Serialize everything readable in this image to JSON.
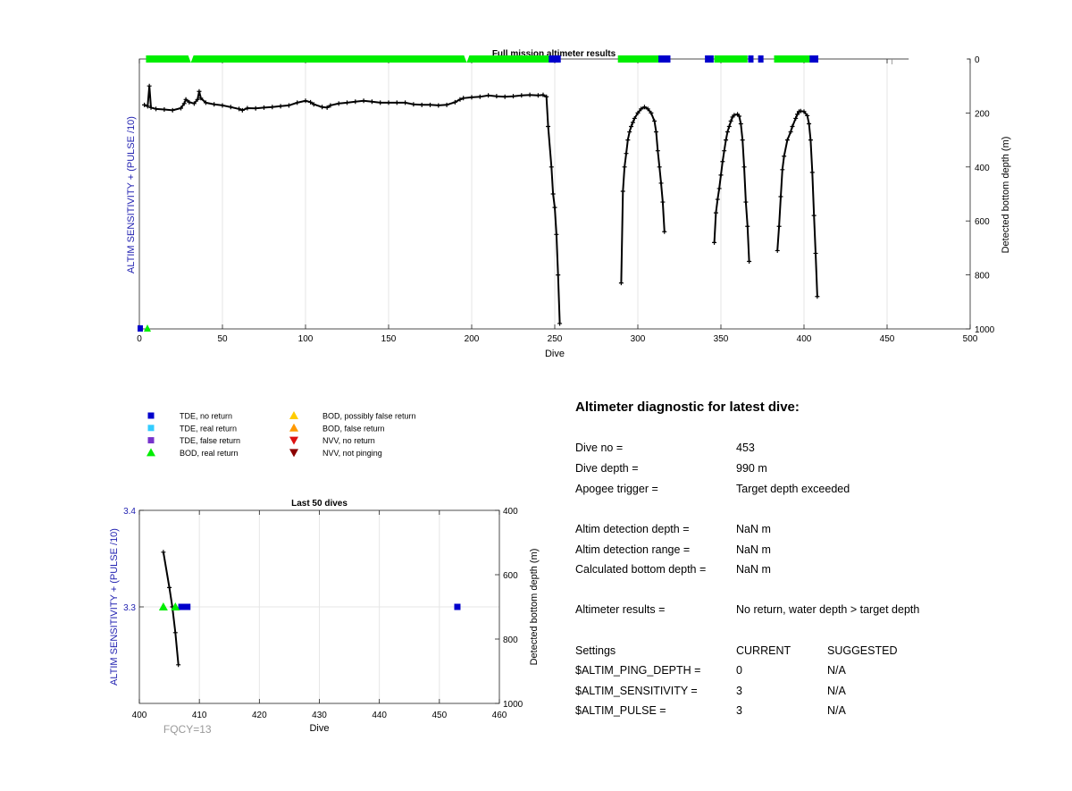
{
  "chart_data": [
    {
      "id": "full-mission",
      "type": "scatter",
      "title": "Full mission altimeter results",
      "xlabel": "Dive",
      "ylabel_left": "ALTIM SENSITIVITY + (PULSE /10)",
      "ylabel_right": "Detected bottom depth (m)",
      "xlim": [
        0,
        500
      ],
      "ylim_right": [
        0,
        1000
      ],
      "right_axis_reversed": true,
      "xticks": [
        0,
        50,
        100,
        150,
        200,
        250,
        300,
        350,
        400,
        450,
        500
      ],
      "yticks_right": [
        0,
        200,
        400,
        600,
        800,
        1000
      ],
      "grid": true,
      "bottom_depth_series": {
        "name": "Detected bottom depth",
        "color": "#000000",
        "segments": [
          [
            [
              3,
              170
            ],
            [
              5,
              175
            ],
            [
              6,
              100
            ],
            [
              7,
              180
            ],
            [
              10,
              185
            ],
            [
              15,
              187
            ],
            [
              20,
              190
            ],
            [
              25,
              182
            ],
            [
              27,
              165
            ],
            [
              28,
              150
            ],
            [
              30,
              160
            ],
            [
              33,
              165
            ],
            [
              35,
              150
            ],
            [
              36,
              120
            ],
            [
              37,
              145
            ],
            [
              40,
              162
            ],
            [
              45,
              168
            ],
            [
              50,
              172
            ],
            [
              55,
              178
            ],
            [
              60,
              185
            ],
            [
              62,
              190
            ],
            [
              65,
              182
            ],
            [
              70,
              183
            ],
            [
              75,
              180
            ],
            [
              80,
              178
            ],
            [
              85,
              175
            ],
            [
              90,
              172
            ],
            [
              95,
              162
            ],
            [
              100,
              155
            ],
            [
              103,
              160
            ],
            [
              105,
              168
            ],
            [
              110,
              178
            ],
            [
              113,
              180
            ],
            [
              115,
              172
            ],
            [
              120,
              165
            ],
            [
              125,
              162
            ],
            [
              130,
              158
            ],
            [
              135,
              155
            ],
            [
              140,
              158
            ],
            [
              145,
              162
            ],
            [
              150,
              162
            ],
            [
              155,
              162
            ],
            [
              160,
              162
            ],
            [
              165,
              168
            ],
            [
              170,
              170
            ],
            [
              175,
              170
            ],
            [
              180,
              172
            ],
            [
              185,
              170
            ],
            [
              190,
              160
            ],
            [
              193,
              150
            ],
            [
              195,
              145
            ],
            [
              200,
              142
            ],
            [
              205,
              140
            ],
            [
              210,
              135
            ],
            [
              215,
              138
            ],
            [
              220,
              140
            ],
            [
              225,
              138
            ],
            [
              230,
              135
            ],
            [
              235,
              133
            ],
            [
              240,
              135
            ],
            [
              243,
              133
            ],
            [
              245,
              140
            ],
            [
              246,
              250
            ],
            [
              248,
              400
            ],
            [
              249,
              500
            ],
            [
              250,
              550
            ],
            [
              251,
              650
            ],
            [
              252,
              800
            ],
            [
              253,
              980
            ]
          ],
          [
            [
              290,
              830
            ],
            [
              291,
              490
            ],
            [
              292,
              400
            ],
            [
              293,
              350
            ],
            [
              294,
              300
            ],
            [
              295,
              270
            ],
            [
              296,
              250
            ],
            [
              297,
              235
            ],
            [
              298,
              220
            ],
            [
              300,
              200
            ],
            [
              302,
              185
            ],
            [
              304,
              178
            ],
            [
              306,
              185
            ],
            [
              308,
              200
            ],
            [
              310,
              230
            ],
            [
              311,
              270
            ],
            [
              312,
              340
            ],
            [
              313,
              400
            ],
            [
              314,
              460
            ],
            [
              315,
              530
            ],
            [
              316,
              640
            ]
          ],
          [
            [
              346,
              680
            ],
            [
              347,
              570
            ],
            [
              348,
              520
            ],
            [
              349,
              480
            ],
            [
              350,
              430
            ],
            [
              351,
              380
            ],
            [
              352,
              340
            ],
            [
              353,
              300
            ],
            [
              354,
              270
            ],
            [
              355,
              250
            ],
            [
              356,
              230
            ],
            [
              357,
              215
            ],
            [
              358,
              208
            ],
            [
              360,
              205
            ],
            [
              361,
              212
            ],
            [
              362,
              240
            ],
            [
              363,
              300
            ],
            [
              364,
              400
            ],
            [
              365,
              530
            ],
            [
              366,
              620
            ],
            [
              367,
              750
            ]
          ],
          [
            [
              384,
              710
            ],
            [
              385,
              620
            ],
            [
              386,
              510
            ],
            [
              387,
              410
            ],
            [
              388,
              360
            ],
            [
              390,
              300
            ],
            [
              392,
              270
            ],
            [
              393,
              250
            ],
            [
              395,
              220
            ],
            [
              396,
              205
            ],
            [
              397,
              195
            ],
            [
              398,
              193
            ],
            [
              400,
              195
            ],
            [
              402,
              210
            ],
            [
              403,
              240
            ],
            [
              404,
              300
            ],
            [
              405,
              420
            ],
            [
              406,
              580
            ],
            [
              407,
              720
            ],
            [
              408,
              880
            ]
          ]
        ]
      },
      "green_bar_ranges": [
        [
          4,
          251
        ],
        [
          288,
          314
        ],
        [
          346,
          366
        ],
        [
          382,
          404
        ]
      ],
      "green_bar_gaps": [
        31,
        197
      ],
      "blue_marks": [
        248,
        250,
        252,
        314,
        316,
        318,
        342,
        344,
        368,
        374,
        405,
        407
      ]
    },
    {
      "id": "last-50",
      "type": "scatter",
      "title": "Last 50 dives",
      "xlabel": "Dive",
      "ylabel_left": "ALTIM SENSITIVITY + (PULSE /10)",
      "ylabel_right": "Detected bottom depth (m)",
      "xlim": [
        400,
        460
      ],
      "ylim_left": [
        3.2,
        3.4
      ],
      "ylim_right": [
        400,
        1000
      ],
      "right_axis_reversed": true,
      "xticks": [
        400,
        410,
        420,
        430,
        440,
        450,
        460
      ],
      "yticks_left": [
        3.3,
        3.4
      ],
      "yticks_right": [
        400,
        600,
        800,
        1000
      ],
      "grid": true,
      "bottom_depth_series": {
        "name": "Detected bottom depth",
        "color": "#000000",
        "points": [
          [
            404,
            530
          ],
          [
            405,
            640
          ],
          [
            405.5,
            700
          ],
          [
            406,
            780
          ],
          [
            406.5,
            880
          ]
        ]
      },
      "bod_real_return": [
        404,
        406
      ],
      "tde_no_return": [
        407,
        408,
        453
      ],
      "sensitivity_value": 3.3
    }
  ],
  "legend": {
    "col1": [
      {
        "label": "TDE, no return",
        "shape": "square",
        "color": "#0000cc"
      },
      {
        "label": "TDE, real return",
        "shape": "square",
        "color": "#33ccff"
      },
      {
        "label": "TDE, false return",
        "shape": "square",
        "color": "#7733cc"
      },
      {
        "label": "BOD, real return",
        "shape": "triangle-up",
        "color": "#00ee00"
      }
    ],
    "col2": [
      {
        "label": "BOD, possibly false return",
        "shape": "triangle-up",
        "color": "#ffcc00"
      },
      {
        "label": "BOD, false return",
        "shape": "triangle-up",
        "color": "#ff9900"
      },
      {
        "label": "NVV, no return",
        "shape": "triangle-down",
        "color": "#dd1111"
      },
      {
        "label": "NVV, not pinging",
        "shape": "triangle-down",
        "color": "#8b0000"
      }
    ]
  },
  "fqcy_label": "FQCY=13",
  "diagnostic": {
    "title": "Altimeter diagnostic for latest dive:",
    "rows": [
      {
        "label": "Dive no =",
        "value": "453"
      },
      {
        "label": "Dive depth =",
        "value": "990 m"
      },
      {
        "label": "Apogee trigger =",
        "value": "Target depth exceeded"
      },
      {
        "label": "Altim detection depth =",
        "value": "NaN m"
      },
      {
        "label": "Altim detection range =",
        "value": "NaN m"
      },
      {
        "label": "Calculated bottom depth =",
        "value": "NaN m"
      },
      {
        "label": "Altimeter results =",
        "value": "No return, water depth > target depth"
      }
    ],
    "settings_header": {
      "label": "Settings",
      "current": "CURRENT",
      "suggested": "SUGGESTED"
    },
    "settings": [
      {
        "label": "$ALTIM_PING_DEPTH =",
        "current": "0",
        "suggested": "N/A"
      },
      {
        "label": "$ALTIM_SENSITIVITY =",
        "current": "3",
        "suggested": "N/A"
      },
      {
        "label": "$ALTIM_PULSE =",
        "current": "3",
        "suggested": "N/A"
      }
    ]
  },
  "colors": {
    "axis_label_blue": "#1f1fb0",
    "grid": "#e6e6e6",
    "bod_green": "#00ee00",
    "tde_blue": "#0000cc",
    "fqcy_gray": "#999999"
  }
}
